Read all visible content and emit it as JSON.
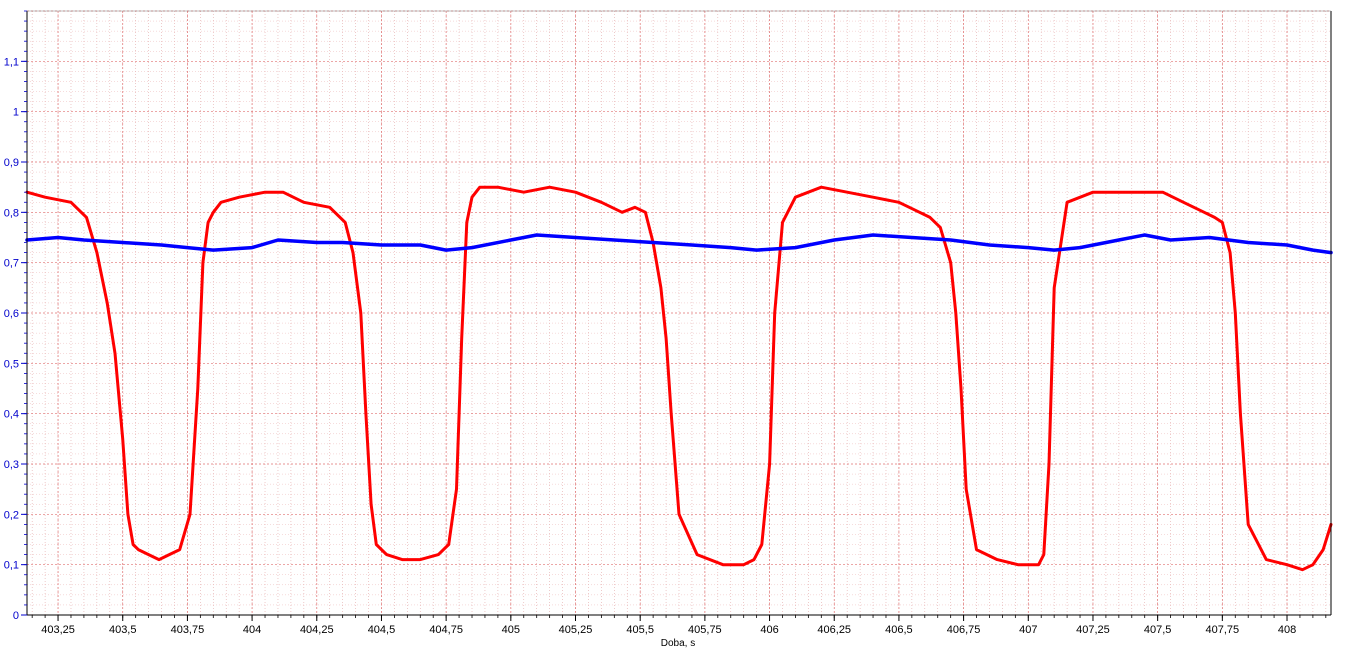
{
  "chart_data": {
    "type": "line",
    "xlabel": "Doba, s",
    "ylabel": "",
    "xlim": [
      403.13,
      408.17
    ],
    "ylim": [
      0,
      1.2
    ],
    "x_ticks": [
      403.25,
      403.5,
      403.75,
      404,
      404.25,
      404.5,
      404.75,
      405,
      405.25,
      405.5,
      405.75,
      406,
      406.25,
      406.5,
      406.75,
      407,
      407.25,
      407.5,
      407.75,
      408
    ],
    "x_tick_labels": [
      "403,25",
      "403,5",
      "403,75",
      "404",
      "404,25",
      "404,5",
      "404,75",
      "405",
      "405,25",
      "405,5",
      "405,75",
      "406",
      "406,25",
      "406,5",
      "406,75",
      "407",
      "407,25",
      "407,5",
      "407,75",
      "408"
    ],
    "y_ticks": [
      0,
      0.1,
      0.2,
      0.3,
      0.4,
      0.5,
      0.6,
      0.7,
      0.8,
      0.9,
      1,
      1.1
    ],
    "y_tick_labels": [
      "0",
      "0,1",
      "0,2",
      "0,3",
      "0,4",
      "0,5",
      "0,6",
      "0,7",
      "0,8",
      "0,9",
      "1",
      "1,1"
    ],
    "grid": true,
    "series": [
      {
        "color": "#ff0000",
        "x": [
          403.13,
          403.2,
          403.3,
          403.36,
          403.4,
          403.44,
          403.47,
          403.5,
          403.52,
          403.54,
          403.56,
          403.6,
          403.64,
          403.68,
          403.72,
          403.76,
          403.79,
          403.81,
          403.83,
          403.85,
          403.88,
          403.95,
          404.05,
          404.12,
          404.2,
          404.3,
          404.36,
          404.39,
          404.42,
          404.44,
          404.46,
          404.48,
          404.52,
          404.58,
          404.65,
          404.72,
          404.76,
          404.79,
          404.81,
          404.83,
          404.85,
          404.88,
          404.95,
          405.05,
          405.15,
          405.25,
          405.35,
          405.43,
          405.48,
          405.52,
          405.55,
          405.58,
          405.6,
          405.62,
          405.65,
          405.72,
          405.82,
          405.9,
          405.94,
          405.97,
          406.0,
          406.02,
          406.05,
          406.1,
          406.2,
          406.3,
          406.4,
          406.5,
          406.58,
          406.62,
          406.66,
          406.7,
          406.72,
          406.74,
          406.76,
          406.8,
          406.88,
          406.96,
          407.0,
          407.04,
          407.06,
          407.08,
          407.1,
          407.15,
          407.25,
          407.35,
          407.45,
          407.52,
          407.6,
          407.68,
          407.72,
          407.75,
          407.78,
          407.8,
          407.82,
          407.85,
          407.92,
          408.0,
          408.06,
          408.1,
          408.14,
          408.17
        ],
        "y": [
          0.84,
          0.83,
          0.82,
          0.79,
          0.72,
          0.62,
          0.52,
          0.35,
          0.2,
          0.14,
          0.13,
          0.12,
          0.11,
          0.12,
          0.13,
          0.2,
          0.45,
          0.7,
          0.78,
          0.8,
          0.82,
          0.83,
          0.84,
          0.84,
          0.82,
          0.81,
          0.78,
          0.72,
          0.6,
          0.4,
          0.22,
          0.14,
          0.12,
          0.11,
          0.11,
          0.12,
          0.14,
          0.25,
          0.55,
          0.78,
          0.83,
          0.85,
          0.85,
          0.84,
          0.85,
          0.84,
          0.82,
          0.8,
          0.81,
          0.8,
          0.74,
          0.65,
          0.55,
          0.4,
          0.2,
          0.12,
          0.1,
          0.1,
          0.11,
          0.14,
          0.3,
          0.6,
          0.78,
          0.83,
          0.85,
          0.84,
          0.83,
          0.82,
          0.8,
          0.79,
          0.77,
          0.7,
          0.6,
          0.45,
          0.25,
          0.13,
          0.11,
          0.1,
          0.1,
          0.1,
          0.12,
          0.3,
          0.65,
          0.82,
          0.84,
          0.84,
          0.84,
          0.84,
          0.82,
          0.8,
          0.79,
          0.78,
          0.72,
          0.6,
          0.4,
          0.18,
          0.11,
          0.1,
          0.09,
          0.1,
          0.13,
          0.18
        ]
      },
      {
        "color": "#0000ff",
        "x": [
          403.13,
          403.25,
          403.35,
          403.5,
          403.65,
          403.75,
          403.85,
          404.0,
          404.1,
          404.25,
          404.35,
          404.5,
          404.65,
          404.75,
          404.85,
          405.0,
          405.1,
          405.25,
          405.4,
          405.55,
          405.7,
          405.85,
          405.95,
          406.1,
          406.25,
          406.4,
          406.55,
          406.7,
          406.85,
          407.0,
          407.1,
          407.2,
          407.35,
          407.45,
          407.55,
          407.7,
          407.85,
          408.0,
          408.1,
          408.17
        ],
        "y": [
          0.745,
          0.75,
          0.745,
          0.74,
          0.735,
          0.73,
          0.725,
          0.73,
          0.745,
          0.74,
          0.74,
          0.735,
          0.735,
          0.725,
          0.73,
          0.745,
          0.755,
          0.75,
          0.745,
          0.74,
          0.735,
          0.73,
          0.725,
          0.73,
          0.745,
          0.755,
          0.75,
          0.745,
          0.735,
          0.73,
          0.725,
          0.73,
          0.745,
          0.755,
          0.745,
          0.75,
          0.74,
          0.735,
          0.725,
          0.72
        ]
      }
    ]
  }
}
